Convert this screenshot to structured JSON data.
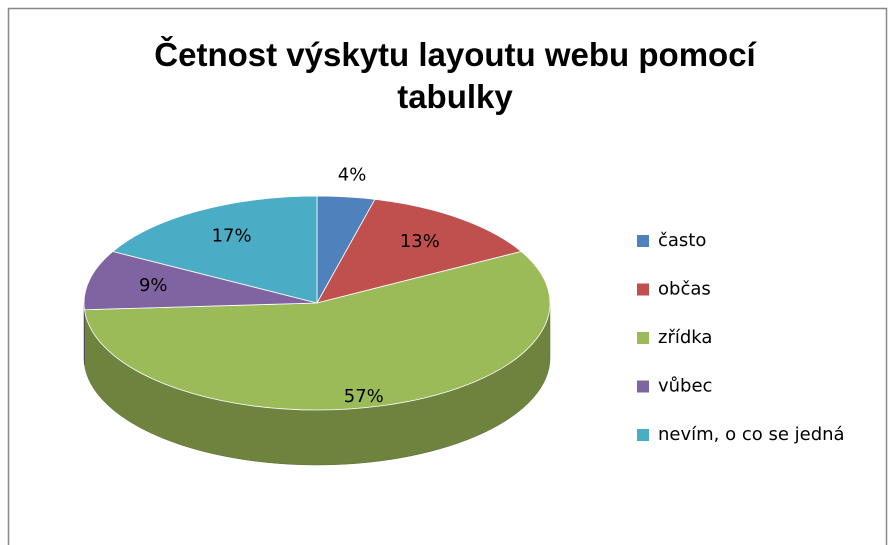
{
  "chart_data": {
    "type": "pie",
    "title": "Četnost výskytu layoutu webu pomocí tabulky",
    "categories": [
      "často",
      "občas",
      "zřídka",
      "vůbec",
      "nevím, o co se jedná"
    ],
    "values": [
      4,
      13,
      57,
      9,
      17
    ],
    "value_labels": [
      "4%",
      "13%",
      "57%",
      "9%",
      "17%"
    ],
    "colors": [
      "#4f81bd",
      "#c0504d",
      "#9bbb59",
      "#8064a2",
      "#4bacc6"
    ],
    "legend": "right"
  }
}
